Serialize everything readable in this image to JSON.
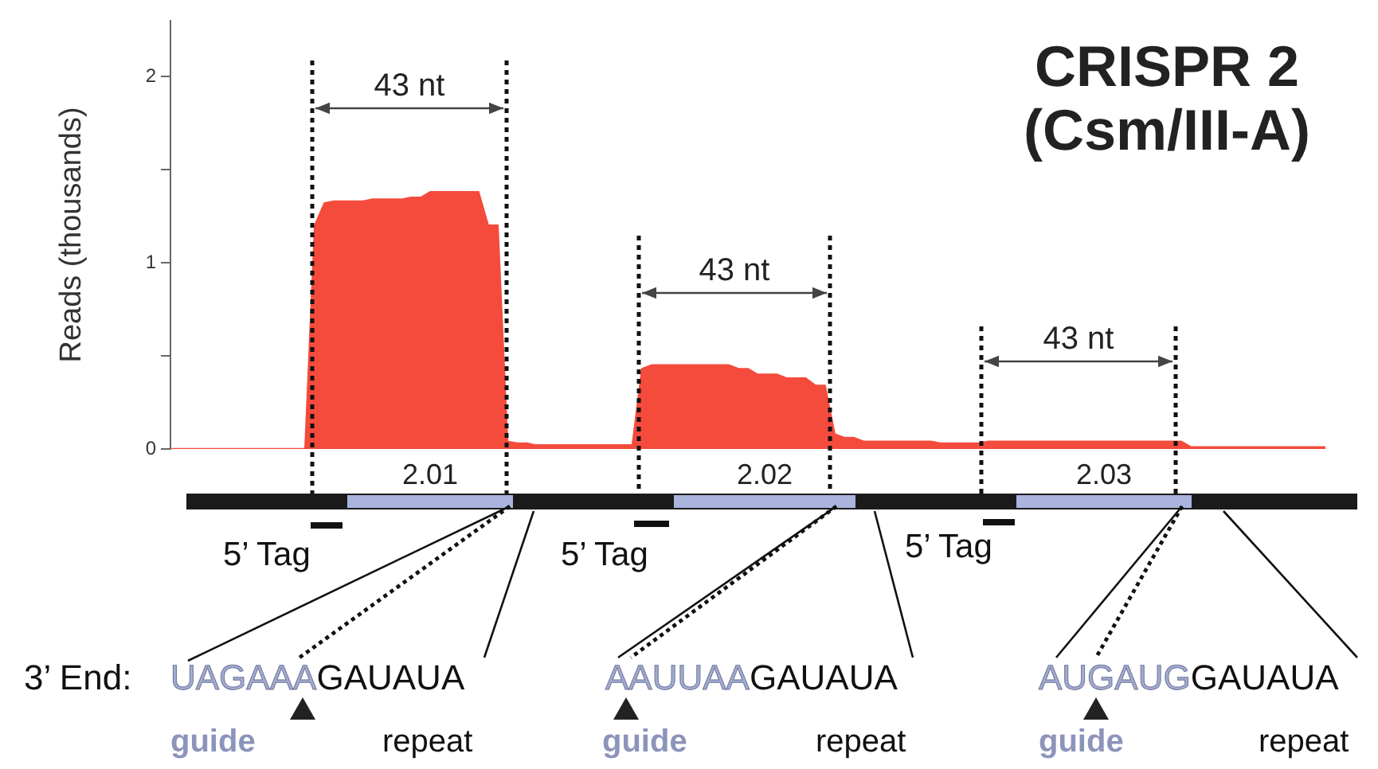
{
  "chart_data": {
    "type": "area",
    "title": "CRISPR 2 (Csm/III-A)",
    "ylabel": "Reads (thousands)",
    "categories": [
      null,
      null,
      null,
      null,
      null,
      null,
      null,
      null,
      null,
      null,
      null,
      null,
      null,
      null,
      null,
      null,
      null,
      null,
      null,
      null,
      null,
      null,
      null,
      null,
      null,
      null,
      null,
      null,
      null,
      null,
      null,
      null,
      null,
      null,
      null,
      null,
      null,
      null,
      null,
      null,
      null,
      null,
      null,
      null,
      null,
      null,
      null,
      null,
      null,
      null,
      null,
      null,
      null,
      null,
      null,
      null,
      null,
      null,
      null,
      null,
      null,
      null,
      null,
      null,
      null,
      null,
      null,
      null,
      null,
      null,
      null,
      null,
      null,
      null,
      null,
      null,
      null,
      null,
      null,
      null,
      null,
      null,
      null,
      null,
      null,
      null,
      null,
      null,
      null,
      null,
      null,
      null,
      null,
      null,
      null,
      null,
      null,
      null,
      null,
      null,
      null,
      null,
      null,
      null,
      null,
      null,
      null,
      null,
      null,
      null,
      null,
      null,
      null,
      null,
      null,
      null,
      null,
      null,
      null,
      null,
      null
    ],
    "series": [
      {
        "color": "#f44b3c",
        "values": [
          0,
          0,
          0,
          0,
          0,
          0,
          0,
          0,
          0,
          0,
          0,
          0,
          0,
          0,
          0,
          1.2,
          1.32,
          1.33,
          1.33,
          1.33,
          1.33,
          1.34,
          1.34,
          1.34,
          1.34,
          1.35,
          1.35,
          1.38,
          1.38,
          1.38,
          1.38,
          1.38,
          1.38,
          1.2,
          1.2,
          0.04,
          0.03,
          0.03,
          0.02,
          0.02,
          0.02,
          0.02,
          0.02,
          0.02,
          0.02,
          0.02,
          0.02,
          0.02,
          0.02,
          0.43,
          0.45,
          0.45,
          0.45,
          0.45,
          0.45,
          0.45,
          0.45,
          0.45,
          0.45,
          0.43,
          0.43,
          0.4,
          0.4,
          0.4,
          0.38,
          0.38,
          0.38,
          0.34,
          0.34,
          0.08,
          0.06,
          0.06,
          0.04,
          0.04,
          0.04,
          0.04,
          0.04,
          0.04,
          0.04,
          0.04,
          0.03,
          0.03,
          0.03,
          0.03,
          0.03,
          0.04,
          0.04,
          0.04,
          0.04,
          0.04,
          0.04,
          0.04,
          0.04,
          0.04,
          0.04,
          0.04,
          0.04,
          0.04,
          0.04,
          0.04,
          0.04,
          0.04,
          0.04,
          0.04,
          0.04,
          0.04,
          0.01,
          0.01,
          0.01,
          0.01,
          0.01,
          0.01,
          0.01,
          0.01,
          0.01,
          0.01,
          0.01,
          0.01,
          0.01,
          0.01,
          0.01
        ]
      }
    ],
    "ylim": [
      0,
      2.3
    ],
    "yticks": [
      0,
      {
        "value": 0.5,
        "label": null
      },
      1,
      {
        "value": 1.5,
        "label": null
      },
      2
    ],
    "tick_labels": "y",
    "marker": "none",
    "legend": false,
    "annotations": [
      "43 nt",
      "43 nt",
      "43 nt",
      "2.01",
      "2.02",
      "2.03",
      "5’ Tag",
      "5’ Tag",
      "5’ Tag",
      "3’ End:",
      "UAGAAA",
      "GAUAUA",
      "AAUUAA",
      "GAUAUA",
      "AUGAUG",
      "GAUAUA",
      "guide",
      "repeat",
      "guide",
      "repeat",
      "guide",
      "repeat"
    ]
  }
}
